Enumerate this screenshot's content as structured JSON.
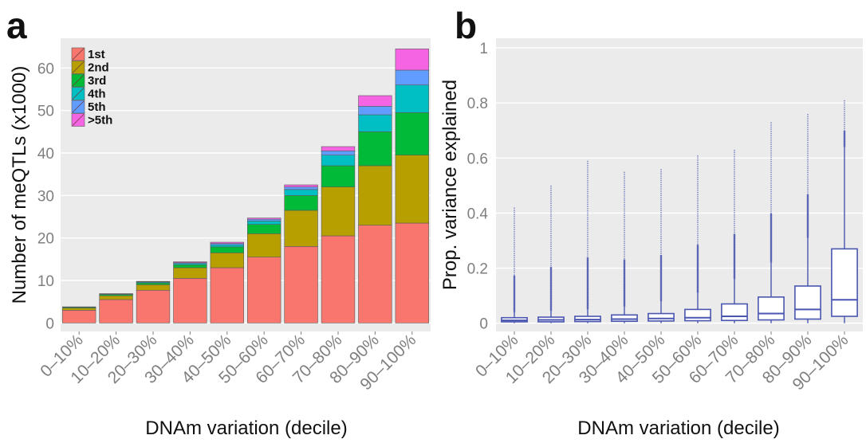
{
  "chart_data": [
    {
      "panel_label": "a",
      "type": "bar",
      "stacked": true,
      "categories": [
        "0–10%",
        "10–20%",
        "20–30%",
        "30–40%",
        "40–50%",
        "50–60%",
        "60–70%",
        "70–80%",
        "80–90%",
        "90–100%"
      ],
      "series": [
        {
          "name": "1st",
          "color": "#F8766D",
          "values": [
            3.0,
            5.5,
            7.7,
            10.5,
            13.0,
            15.5,
            18.0,
            20.5,
            23.0,
            23.5
          ]
        },
        {
          "name": "2nd",
          "color": "#B79F00",
          "values": [
            0.5,
            0.9,
            1.3,
            2.5,
            3.5,
            5.5,
            8.5,
            11.5,
            14.0,
            16.0
          ]
        },
        {
          "name": "3rd",
          "color": "#00BA38",
          "values": [
            0.2,
            0.3,
            0.4,
            0.7,
            1.4,
            2.2,
            3.5,
            5.0,
            8.0,
            10.0
          ]
        },
        {
          "name": "4th",
          "color": "#00BFC4",
          "values": [
            0.1,
            0.1,
            0.2,
            0.3,
            0.5,
            0.8,
            1.4,
            2.5,
            4.0,
            6.5
          ]
        },
        {
          "name": "5th",
          "color": "#619CFF",
          "values": [
            0.0,
            0.05,
            0.1,
            0.2,
            0.3,
            0.4,
            0.6,
            1.0,
            2.0,
            3.5
          ]
        },
        {
          "name": ">5th",
          "color": "#F564E3",
          "values": [
            0.0,
            0.05,
            0.1,
            0.2,
            0.3,
            0.3,
            0.5,
            1.0,
            2.5,
            5.0
          ]
        }
      ],
      "xlabel": "DNAm variation (decile)",
      "ylabel": "Number of meQTLs (x1000)",
      "ylim": [
        0,
        65
      ],
      "yticks": [
        "0",
        "10",
        "20",
        "30",
        "40",
        "50",
        "60"
      ],
      "legend_position": "top-left",
      "grid": true
    },
    {
      "panel_label": "b",
      "type": "boxplot",
      "categories": [
        "0–10%",
        "10–20%",
        "20–30%",
        "30–40%",
        "40–50%",
        "50–60%",
        "60–70%",
        "70–80%",
        "80–90%",
        "90–100%"
      ],
      "boxes": [
        {
          "min": 0.0,
          "q1": 0.005,
          "median": 0.01,
          "q3": 0.02,
          "whisker_high": 0.04,
          "outlier_max": 0.42
        },
        {
          "min": 0.0,
          "q1": 0.005,
          "median": 0.012,
          "q3": 0.022,
          "whisker_high": 0.045,
          "outlier_max": 0.5
        },
        {
          "min": 0.0,
          "q1": 0.006,
          "median": 0.013,
          "q3": 0.025,
          "whisker_high": 0.05,
          "outlier_max": 0.59
        },
        {
          "min": 0.0,
          "q1": 0.007,
          "median": 0.015,
          "q3": 0.03,
          "whisker_high": 0.06,
          "outlier_max": 0.55
        },
        {
          "min": 0.0,
          "q1": 0.008,
          "median": 0.017,
          "q3": 0.035,
          "whisker_high": 0.08,
          "outlier_max": 0.56
        },
        {
          "min": 0.0,
          "q1": 0.009,
          "median": 0.02,
          "q3": 0.05,
          "whisker_high": 0.11,
          "outlier_max": 0.61
        },
        {
          "min": 0.0,
          "q1": 0.01,
          "median": 0.025,
          "q3": 0.07,
          "whisker_high": 0.16,
          "outlier_max": 0.63
        },
        {
          "min": 0.0,
          "q1": 0.012,
          "median": 0.035,
          "q3": 0.095,
          "whisker_high": 0.22,
          "outlier_max": 0.73
        },
        {
          "min": 0.0,
          "q1": 0.015,
          "median": 0.05,
          "q3": 0.135,
          "whisker_high": 0.31,
          "outlier_max": 0.76
        },
        {
          "min": 0.0,
          "q1": 0.025,
          "median": 0.085,
          "q3": 0.27,
          "whisker_high": 0.64,
          "outlier_max": 0.81
        }
      ],
      "color": "#4A56B0",
      "xlabel": "DNAm variation (decile)",
      "ylabel": "Prop. variance explained",
      "ylim": [
        -0.03,
        1.0
      ],
      "yticks": [
        "0",
        "0.2",
        "0.4",
        "0.6",
        "0.8",
        "1"
      ],
      "grid": true
    }
  ]
}
